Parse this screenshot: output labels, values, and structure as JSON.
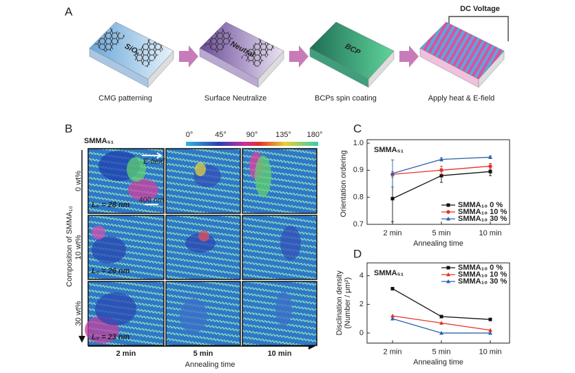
{
  "panel_a": {
    "label": "A",
    "steps": [
      "CMG patterning",
      "Surface Neutralize",
      "BCPs spin coating",
      "Apply heat & E-field"
    ],
    "slab_labels": [
      "SiO₂",
      "Neutral",
      "BCP"
    ],
    "voltage_label": "DC Voltage"
  },
  "panel_b": {
    "label": "B",
    "title": "SMMA₅₁",
    "colorbar_ticks": [
      "0°",
      "45°",
      "90°",
      "135°",
      "180°"
    ],
    "row_labels": [
      "0 wt%",
      "10 wt%",
      "30 wt%"
    ],
    "y_label": "Composition of SMMA₁₀",
    "column_labels": [
      "2 min",
      "5 min",
      "10 min"
    ],
    "x_label": "Annealing time",
    "period_labels": [
      "L₀ = 28 nm",
      "L₀ = 26 nm",
      "L₀ = 23 nm"
    ],
    "field_label": "E-field",
    "scale_label": "400 nm"
  },
  "chart_data": [
    {
      "panel_label": "C",
      "type": "line",
      "title": "SMMA₅₁",
      "x_label": "Annealing time",
      "y_label": [
        "Orientation ordering"
      ],
      "categories": [
        "2 min",
        "5 min",
        "10 min"
      ],
      "ylim": [
        0.7,
        1.0
      ],
      "yticks": [
        0.7,
        0.8,
        0.9,
        {
          "value": 1.0,
          "label": "1.0"
        }
      ],
      "legend": "lower right",
      "series": [
        {
          "name": "SMMA₁₀ 0 %",
          "color": "#111111",
          "marker": "square",
          "values": [
            0.795,
            0.88,
            0.895
          ],
          "errors": [
            0.085,
            0.025,
            0.015
          ]
        },
        {
          "name": "SMMA₁₀ 10 %",
          "color": "#e8302a",
          "marker": "circle",
          "values": [
            0.885,
            0.9,
            0.915
          ],
          "errors": [
            0.01,
            0.015,
            0.01
          ]
        },
        {
          "name": "SMMA₁₀ 30 %",
          "color": "#2b62ad",
          "marker": "triangle",
          "values": [
            0.888,
            0.94,
            0.948
          ],
          "errors": [
            0.05,
            0.006,
            0.005
          ]
        }
      ]
    },
    {
      "panel_label": "D",
      "type": "line",
      "title": "SMMA₅₁",
      "x_label": "Annealing time",
      "y_label": [
        "Disclination density",
        "(Number / μm²)"
      ],
      "categories": [
        "2 min",
        "5 min",
        "10 min"
      ],
      "ylim": [
        -0.7,
        4.9
      ],
      "yticks": [
        0,
        2,
        4
      ],
      "legend": "upper right",
      "series": [
        {
          "name": "SMMA₁₀ 0 %",
          "color": "#111111",
          "marker": "square",
          "values": [
            3.1,
            1.15,
            0.95
          ]
        },
        {
          "name": "SMMA₁₀ 10 %",
          "color": "#e8302a",
          "marker": "triangle",
          "values": [
            1.2,
            0.7,
            0.2
          ]
        },
        {
          "name": "SMMA₁₀ 30 %",
          "color": "#2b62ad",
          "marker": "triangle",
          "values": [
            1.0,
            0.0,
            0.0
          ]
        }
      ]
    }
  ]
}
